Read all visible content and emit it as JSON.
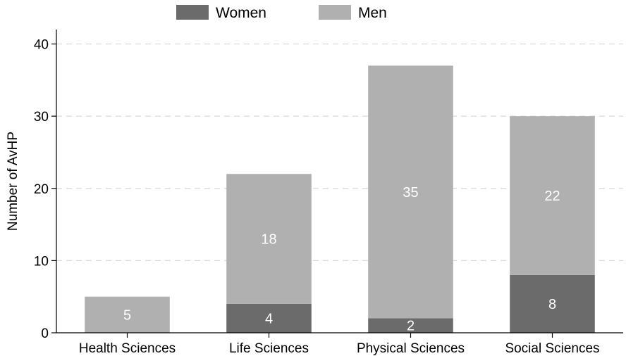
{
  "chart_data": {
    "type": "bar",
    "stacked": true,
    "categories": [
      "Health Sciences",
      "Life Sciences",
      "Physical Sciences",
      "Social Sciences"
    ],
    "series": [
      {
        "name": "Women",
        "values": [
          0,
          4,
          2,
          8
        ],
        "labels": [
          "",
          "4",
          "2",
          "8"
        ],
        "color": "#6b6b6b"
      },
      {
        "name": "Men",
        "values": [
          5,
          18,
          35,
          22
        ],
        "labels": [
          "5",
          "18",
          "35",
          "22"
        ],
        "color": "#b0b0b0"
      }
    ],
    "ylabel": "Number of AvHP",
    "xlabel": "",
    "ylim": [
      0,
      42
    ],
    "yticks": [
      0,
      10,
      20,
      30,
      40
    ],
    "grid": true,
    "legend_position": "top-center"
  }
}
